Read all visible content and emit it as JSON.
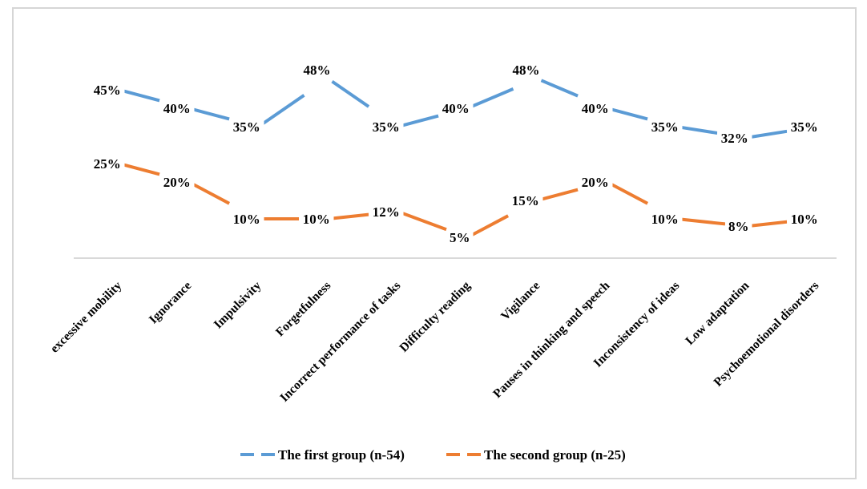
{
  "chart_data": {
    "type": "line",
    "title": "",
    "categories": [
      "excessive mobility",
      "Ignorance",
      "Impulsivity",
      "Forgetfulness",
      "Incorrect performance of tasks",
      "Difficulty reading",
      "Vigilance",
      "Pauses in thinking and speech",
      "Inconsistency of ideas",
      "Low adaptation",
      "Psychoemotional disorders"
    ],
    "series": [
      {
        "name": "The first group (n-54)",
        "color": "#5B9BD5",
        "values": [
          45,
          40,
          35,
          48,
          35,
          40,
          48,
          40,
          35,
          32,
          35
        ],
        "labels": [
          "45%",
          "40%",
          "35%",
          "48%",
          "35%",
          "40%",
          "48%",
          "40%",
          "35%",
          "32%",
          "35%"
        ]
      },
      {
        "name": "The second group (n-25)",
        "color": "#ED7D31",
        "values": [
          25,
          20,
          10,
          10,
          12,
          5,
          15,
          20,
          10,
          8,
          10
        ],
        "labels": [
          "25%",
          "20%",
          "10%",
          "10%",
          "12%",
          "5%",
          "15%",
          "20%",
          "10%",
          "8%",
          "10%"
        ]
      }
    ],
    "value_suffix": "%",
    "xlabel": "",
    "ylabel": "",
    "ylim": [
      0,
      60
    ],
    "grid": false,
    "line_style": "dash",
    "legend_position": "bottom",
    "axis_color": "#D9D9D9",
    "text_color": "#000000",
    "background_color": "#FFFFFF"
  }
}
